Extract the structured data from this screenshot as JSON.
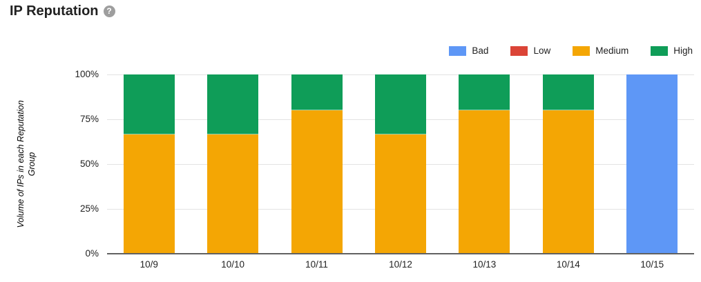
{
  "header": {
    "title": "IP Reputation",
    "help_glyph": "?"
  },
  "legend": [
    {
      "label": "Bad",
      "color": "#5e97f6"
    },
    {
      "label": "Low",
      "color": "#db4437"
    },
    {
      "label": "Medium",
      "color": "#f4a604"
    },
    {
      "label": "High",
      "color": "#0f9d58"
    }
  ],
  "chart_data": {
    "type": "bar",
    "stacked": true,
    "title": "IP Reputation",
    "ylabel": "Volume of IPs in each Reputation Group",
    "ylabel_lines": [
      "Volume of IPs in each Reputation",
      "Group"
    ],
    "xlabel": "",
    "categories": [
      "10/9",
      "10/10",
      "10/11",
      "10/12",
      "10/13",
      "10/14",
      "10/15"
    ],
    "series": [
      {
        "name": "Bad",
        "color": "#5e97f6",
        "values": [
          0,
          0,
          0,
          0,
          0,
          0,
          100
        ]
      },
      {
        "name": "Low",
        "color": "#db4437",
        "values": [
          0,
          0,
          0,
          0,
          0,
          0,
          0
        ]
      },
      {
        "name": "Medium",
        "color": "#f4a604",
        "values": [
          66.7,
          66.7,
          80,
          66.7,
          80,
          80,
          0
        ]
      },
      {
        "name": "High",
        "color": "#0f9d58",
        "values": [
          33.3,
          33.3,
          20,
          33.3,
          20,
          20,
          0
        ]
      }
    ],
    "yticks": [
      "100%",
      "75%",
      "50%",
      "25%",
      "0%"
    ],
    "ylim": [
      0,
      100
    ],
    "grid": true,
    "legend_position": "top-right"
  }
}
